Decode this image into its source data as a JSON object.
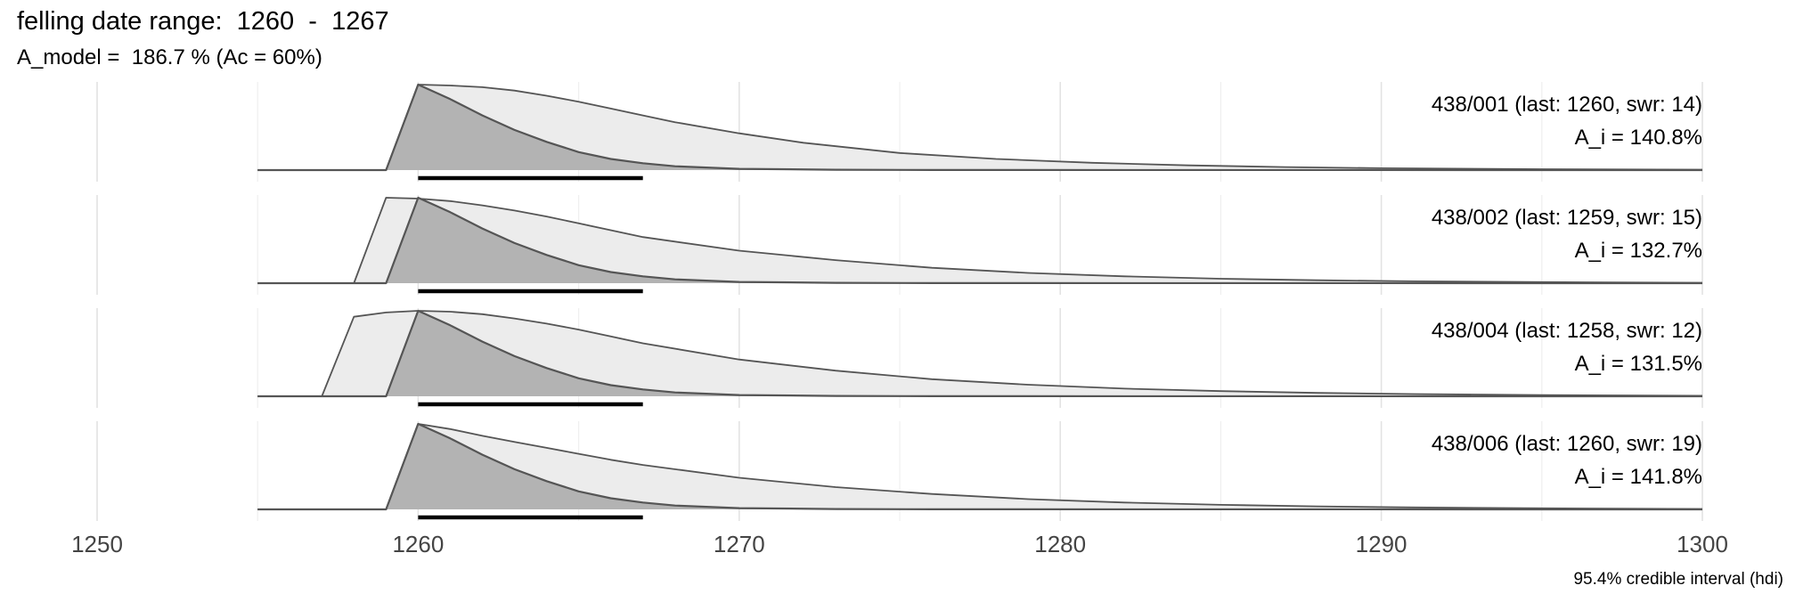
{
  "header": {
    "title": "felling date range:  1260  -  1267",
    "subtitle": "A_model =  186.7 % (Ac = 60%)"
  },
  "chart_data": {
    "type": "area",
    "xlim": [
      1250,
      1300
    ],
    "x_ticks": [
      1250,
      1260,
      1270,
      1280,
      1290,
      1300
    ],
    "x_minor_ticks": [
      1255,
      1265,
      1275,
      1285,
      1295
    ],
    "caption": "95.4% credible interval (hdi)",
    "grid": true,
    "colors": {
      "prior_fill": "#ececec",
      "posterior_fill": "#b3b3b3",
      "outline": "#555555",
      "hdi_bar": "#000000"
    },
    "samples": [
      {
        "label": "438/001 (last: 1260, swr: 14)",
        "agreement": "A_i = 140.8%",
        "hdi": [
          1260,
          1267
        ],
        "prior": [
          [
            1255,
            0
          ],
          [
            1259,
            0
          ],
          [
            1260,
            1.0
          ],
          [
            1261,
            0.99
          ],
          [
            1262,
            0.97
          ],
          [
            1263,
            0.93
          ],
          [
            1264,
            0.87
          ],
          [
            1265,
            0.8
          ],
          [
            1266,
            0.72
          ],
          [
            1267,
            0.64
          ],
          [
            1268,
            0.56
          ],
          [
            1270,
            0.43
          ],
          [
            1272,
            0.32
          ],
          [
            1275,
            0.2
          ],
          [
            1278,
            0.13
          ],
          [
            1281,
            0.085
          ],
          [
            1284,
            0.055
          ],
          [
            1287,
            0.035
          ],
          [
            1290,
            0.022
          ],
          [
            1295,
            0.01
          ],
          [
            1300,
            0.005
          ]
        ],
        "posterior": [
          [
            1255,
            0
          ],
          [
            1259,
            0
          ],
          [
            1260,
            1.0
          ],
          [
            1261,
            0.83
          ],
          [
            1262,
            0.64
          ],
          [
            1263,
            0.47
          ],
          [
            1264,
            0.33
          ],
          [
            1265,
            0.21
          ],
          [
            1266,
            0.13
          ],
          [
            1267,
            0.08
          ],
          [
            1268,
            0.045
          ],
          [
            1270,
            0.015
          ],
          [
            1273,
            0.004
          ],
          [
            1276,
            0.001
          ],
          [
            1300,
            0
          ]
        ]
      },
      {
        "label": "438/002 (last: 1259, swr: 15)",
        "agreement": "A_i = 132.7%",
        "hdi": [
          1260,
          1267
        ],
        "prior": [
          [
            1255,
            0
          ],
          [
            1258,
            0
          ],
          [
            1259,
            1.0
          ],
          [
            1260,
            0.99
          ],
          [
            1261,
            0.96
          ],
          [
            1262,
            0.91
          ],
          [
            1263,
            0.85
          ],
          [
            1264,
            0.78
          ],
          [
            1265,
            0.7
          ],
          [
            1266,
            0.62
          ],
          [
            1267,
            0.54
          ],
          [
            1270,
            0.38
          ],
          [
            1273,
            0.27
          ],
          [
            1276,
            0.18
          ],
          [
            1279,
            0.12
          ],
          [
            1282,
            0.08
          ],
          [
            1285,
            0.052
          ],
          [
            1288,
            0.034
          ],
          [
            1291,
            0.022
          ],
          [
            1295,
            0.012
          ],
          [
            1300,
            0.005
          ]
        ],
        "posterior": [
          [
            1255,
            0
          ],
          [
            1259,
            0
          ],
          [
            1260,
            1.0
          ],
          [
            1261,
            0.83
          ],
          [
            1262,
            0.64
          ],
          [
            1263,
            0.47
          ],
          [
            1264,
            0.33
          ],
          [
            1265,
            0.21
          ],
          [
            1266,
            0.13
          ],
          [
            1267,
            0.08
          ],
          [
            1268,
            0.045
          ],
          [
            1270,
            0.015
          ],
          [
            1273,
            0.004
          ],
          [
            1276,
            0.001
          ],
          [
            1300,
            0
          ]
        ]
      },
      {
        "label": "438/004 (last: 1258, swr: 12)",
        "agreement": "A_i = 131.5%",
        "hdi": [
          1260,
          1267
        ],
        "prior": [
          [
            1255,
            0
          ],
          [
            1257,
            0
          ],
          [
            1258,
            0.93
          ],
          [
            1259,
            0.98
          ],
          [
            1260,
            1.0
          ],
          [
            1261,
            0.99
          ],
          [
            1262,
            0.96
          ],
          [
            1263,
            0.91
          ],
          [
            1264,
            0.85
          ],
          [
            1265,
            0.78
          ],
          [
            1266,
            0.7
          ],
          [
            1267,
            0.62
          ],
          [
            1270,
            0.43
          ],
          [
            1273,
            0.3
          ],
          [
            1276,
            0.2
          ],
          [
            1279,
            0.135
          ],
          [
            1282,
            0.09
          ],
          [
            1285,
            0.06
          ],
          [
            1288,
            0.04
          ],
          [
            1291,
            0.026
          ],
          [
            1295,
            0.014
          ],
          [
            1300,
            0.006
          ]
        ],
        "posterior": [
          [
            1255,
            0
          ],
          [
            1259,
            0
          ],
          [
            1260,
            1.0
          ],
          [
            1261,
            0.83
          ],
          [
            1262,
            0.64
          ],
          [
            1263,
            0.47
          ],
          [
            1264,
            0.33
          ],
          [
            1265,
            0.21
          ],
          [
            1266,
            0.13
          ],
          [
            1267,
            0.08
          ],
          [
            1268,
            0.045
          ],
          [
            1270,
            0.015
          ],
          [
            1273,
            0.004
          ],
          [
            1276,
            0.001
          ],
          [
            1300,
            0
          ]
        ]
      },
      {
        "label": "438/006 (last: 1260, swr: 19)",
        "agreement": "A_i = 141.8%",
        "hdi": [
          1260,
          1267
        ],
        "prior": [
          [
            1255,
            0
          ],
          [
            1259,
            0
          ],
          [
            1260,
            1.0
          ],
          [
            1261,
            0.94
          ],
          [
            1262,
            0.86
          ],
          [
            1263,
            0.79
          ],
          [
            1264,
            0.72
          ],
          [
            1265,
            0.65
          ],
          [
            1266,
            0.58
          ],
          [
            1267,
            0.52
          ],
          [
            1270,
            0.37
          ],
          [
            1273,
            0.26
          ],
          [
            1276,
            0.18
          ],
          [
            1279,
            0.12
          ],
          [
            1282,
            0.08
          ],
          [
            1285,
            0.053
          ],
          [
            1288,
            0.035
          ],
          [
            1291,
            0.023
          ],
          [
            1295,
            0.012
          ],
          [
            1300,
            0.005
          ]
        ],
        "posterior": [
          [
            1255,
            0
          ],
          [
            1259,
            0
          ],
          [
            1260,
            1.0
          ],
          [
            1261,
            0.83
          ],
          [
            1262,
            0.64
          ],
          [
            1263,
            0.47
          ],
          [
            1264,
            0.33
          ],
          [
            1265,
            0.21
          ],
          [
            1266,
            0.13
          ],
          [
            1267,
            0.08
          ],
          [
            1268,
            0.045
          ],
          [
            1270,
            0.015
          ],
          [
            1273,
            0.004
          ],
          [
            1276,
            0.001
          ],
          [
            1300,
            0
          ]
        ]
      }
    ]
  }
}
